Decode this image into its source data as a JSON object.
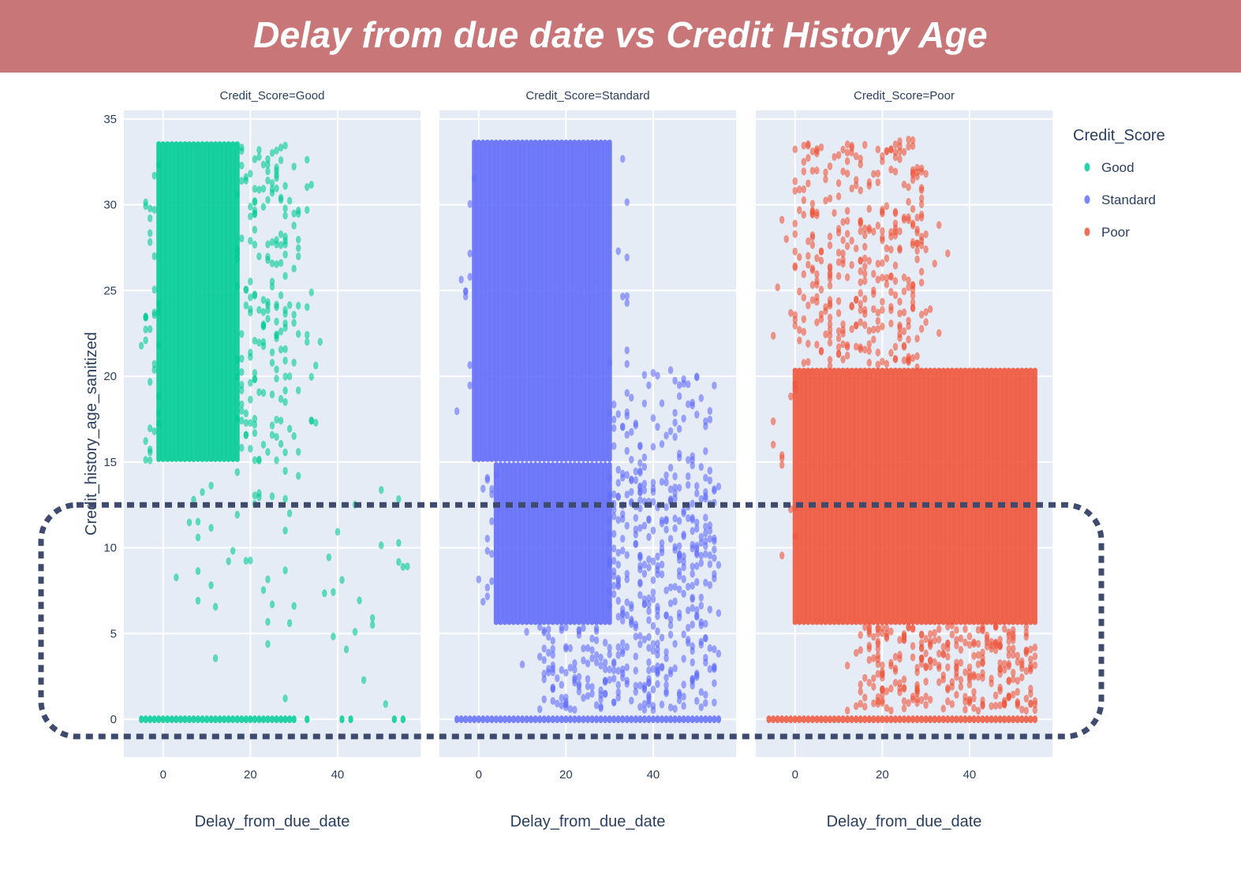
{
  "header": {
    "title": "Delay from due date vs Credit History Age"
  },
  "legend": {
    "title": "Credit_Score",
    "items": [
      {
        "label": "Good",
        "color": "#00cc96"
      },
      {
        "label": "Standard",
        "color": "#636efa"
      },
      {
        "label": "Poor",
        "color": "#ef553b"
      }
    ]
  },
  "annotation": {
    "shape": "dashed-rounded-rectangle",
    "color": "#3e4a6e",
    "y_range": [
      -1,
      12.5
    ]
  },
  "chart_data": {
    "type": "scatter",
    "xlabel": "Delay_from_due_date",
    "ylabel": "Credit_history_age_sanitized",
    "xlim": [
      -9,
      59
    ],
    "ylim": [
      -2.2,
      35.5
    ],
    "x_ticks": [
      0,
      20,
      40
    ],
    "y_ticks": [
      0,
      5,
      10,
      15,
      20,
      25,
      30,
      35
    ],
    "grid": true,
    "legend_position": "right",
    "facets": [
      {
        "title": "Credit_Score=Good",
        "series": "Good",
        "color": "#00cc96",
        "regions": [
          {
            "x": [
              -5,
              30
            ],
            "y": [
              0,
              0
            ],
            "density": 1.0
          },
          {
            "x": [
              30,
              55
            ],
            "y": [
              0,
              0
            ],
            "density": 0.25
          },
          {
            "x": [
              -1,
              17
            ],
            "y": [
              15,
              33.7
            ],
            "density": 1.0
          },
          {
            "x": [
              17,
              31
            ],
            "y": [
              15,
              33.5
            ],
            "density": 0.35
          },
          {
            "x": [
              -5,
              -1
            ],
            "y": [
              15,
              33
            ],
            "density": 0.25
          },
          {
            "x": [
              31,
              36
            ],
            "y": [
              17,
              33
            ],
            "density": 0.1
          },
          {
            "x": [
              3,
              31
            ],
            "y": [
              5.5,
              14.5
            ],
            "density": 0.07
          },
          {
            "x": [
              35,
              56
            ],
            "y": [
              0,
              14
            ],
            "density": 0.035
          },
          {
            "x": [
              10,
              30
            ],
            "y": [
              1,
              5
            ],
            "density": 0.02
          }
        ]
      },
      {
        "title": "Credit_Score=Standard",
        "series": "Standard",
        "color": "#636efa",
        "regions": [
          {
            "x": [
              -5,
              55
            ],
            "y": [
              0,
              0
            ],
            "density": 1.0
          },
          {
            "x": [
              -1,
              30
            ],
            "y": [
              15,
              33.8
            ],
            "density": 1.0
          },
          {
            "x": [
              4,
              30
            ],
            "y": [
              5.5,
              15
            ],
            "density": 1.0
          },
          {
            "x": [
              30,
              55
            ],
            "y": [
              14,
              20.5
            ],
            "density": 0.25
          },
          {
            "x": [
              30,
              55
            ],
            "y": [
              0.5,
              14
            ],
            "density": 0.55
          },
          {
            "x": [
              15,
              30
            ],
            "y": [
              0.5,
              5.5
            ],
            "density": 0.6
          },
          {
            "x": [
              10,
              15
            ],
            "y": [
              0.5,
              5.5
            ],
            "density": 0.12
          },
          {
            "x": [
              -5,
              -1
            ],
            "y": [
              16,
              33
            ],
            "density": 0.08
          },
          {
            "x": [
              0,
              4
            ],
            "y": [
              5.5,
              15
            ],
            "density": 0.2
          },
          {
            "x": [
              30,
              35
            ],
            "y": [
              20.5,
              33
            ],
            "density": 0.08
          }
        ]
      },
      {
        "title": "Credit_Score=Poor",
        "series": "Poor",
        "color": "#ef553b",
        "regions": [
          {
            "x": [
              -6,
              55
            ],
            "y": [
              0,
              0
            ],
            "density": 1.0
          },
          {
            "x": [
              0,
              55
            ],
            "y": [
              5.5,
              20.5
            ],
            "density": 1.0
          },
          {
            "x": [
              15,
              55
            ],
            "y": [
              0.5,
              5.5
            ],
            "density": 0.75
          },
          {
            "x": [
              0,
              30
            ],
            "y": [
              20.5,
              33.8
            ],
            "density": 0.45
          },
          {
            "x": [
              -5,
              0
            ],
            "y": [
              8,
              30
            ],
            "density": 0.08
          },
          {
            "x": [
              11,
              15
            ],
            "y": [
              0.5,
              5.5
            ],
            "density": 0.1
          },
          {
            "x": [
              30,
              35
            ],
            "y": [
              21,
              31
            ],
            "density": 0.05
          }
        ]
      }
    ]
  }
}
